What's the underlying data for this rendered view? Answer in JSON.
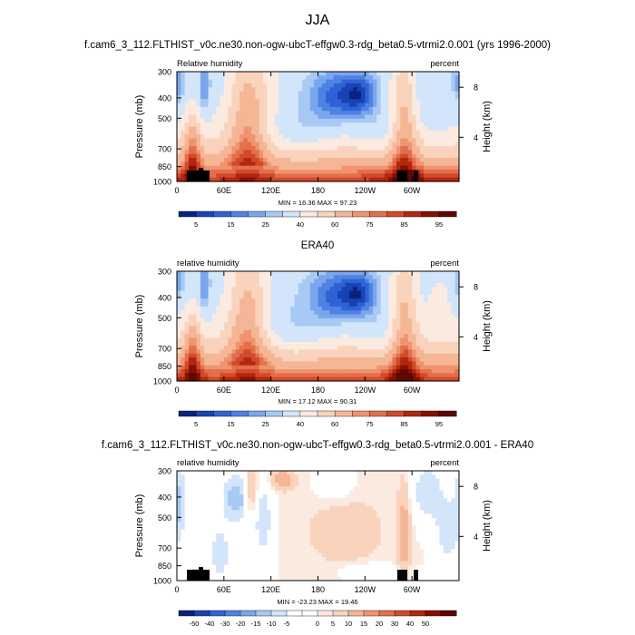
{
  "page": {
    "title": "JJA",
    "panel1_header": "f.cam6_3_112.FLTHIST_v0c.ne30.non-ogw-ubcT-effgw0.3-rdg_beta0.5-vtrmi2.0.001 (yrs 1996-2000)",
    "panel2_header": "ERA40",
    "panel3_header": "f.cam6_3_112.FLTHIST_v0c.ne30.non-ogw-ubcT-effgw0.3-rdg_beta0.5-vtrmi2.0.001 - ERA40"
  },
  "colors": {
    "rh_levels": [
      "#08237e",
      "#1743b4",
      "#2f62d5",
      "#4f82e3",
      "#7aa6ed",
      "#a7c9f4",
      "#d2e5fa",
      "#fbeae0",
      "#f9d3bc",
      "#f5b696",
      "#ef946f",
      "#e36f4c",
      "#d04a2b",
      "#b3260f",
      "#861000",
      "#5d0800"
    ],
    "diff_levels": [
      "#08237e",
      "#1743b4",
      "#2f62d5",
      "#4f82e3",
      "#7aa6ed",
      "#a7c9f4",
      "#d2e5fa",
      "#ffffff",
      "#ffffff",
      "#fbeae0",
      "#f9d3bc",
      "#f5b696",
      "#ef946f",
      "#e36f4c",
      "#d04a2b",
      "#b3260f",
      "#861000",
      "#5d0800"
    ],
    "topography": "#000000"
  },
  "chart_data": [
    {
      "type": "heatmap",
      "title": "f.cam6_3_112.FLTHIST_v0c.ne30.non-ogw-ubcT-effgw0.3-rdg_beta0.5-vtrmi2.0.001 (yrs 1996-2000)",
      "left_label": "Relative humidity",
      "right_label": "percent",
      "xlabel": "",
      "ylabel": "Pressure (mb)",
      "y2label": "Height (km)",
      "xticks": [
        "0",
        "60E",
        "120E",
        "180",
        "120W",
        "60W"
      ],
      "yticks": [
        "300",
        "400",
        "500",
        "700",
        "850",
        "1000"
      ],
      "y2ticks": [
        "8",
        "4"
      ],
      "ylim": [
        300,
        1000
      ],
      "xlim_deg_east": [
        0,
        360
      ],
      "stats": "MIN = 16.36  MAX = 97.23",
      "colorbar_labels": [
        "5",
        "15",
        "25",
        "40",
        "60",
        "75",
        "85",
        "95"
      ],
      "topography": true
    },
    {
      "type": "heatmap",
      "title": "ERA40",
      "left_label": "relative humidity",
      "right_label": "percent",
      "xlabel": "",
      "ylabel": "Pressure (mb)",
      "y2label": "Height (km)",
      "xticks": [
        "0",
        "60E",
        "120E",
        "180",
        "120W",
        "60W"
      ],
      "yticks": [
        "300",
        "400",
        "500",
        "700",
        "850",
        "1000"
      ],
      "y2ticks": [
        "8",
        "4"
      ],
      "ylim": [
        300,
        1000
      ],
      "xlim_deg_east": [
        0,
        360
      ],
      "stats": "MIN = 17.12  MAX = 90.31",
      "colorbar_labels": [
        "5",
        "15",
        "25",
        "40",
        "60",
        "75",
        "85",
        "95"
      ],
      "topography": false
    },
    {
      "type": "heatmap",
      "title": "f.cam6_3_112.FLTHIST_v0c.ne30.non-ogw-ubcT-effgw0.3-rdg_beta0.5-vtrmi2.0.001 - ERA40",
      "left_label": "relative humidity",
      "right_label": "percent",
      "xlabel": "",
      "ylabel": "Pressure (mb)",
      "y2label": "Height (km)",
      "xticks": [
        "0",
        "60E",
        "120E",
        "180",
        "120W",
        "60W"
      ],
      "yticks": [
        "300",
        "400",
        "500",
        "700",
        "850",
        "1000"
      ],
      "y2ticks": [
        "8",
        "4"
      ],
      "ylim": [
        300,
        1000
      ],
      "xlim_deg_east": [
        0,
        360
      ],
      "stats": "MIN = -23.23  MAX = 19.46",
      "colorbar_labels": [
        "-50",
        "-40",
        "-30",
        "-20",
        "-15",
        "-10",
        "-5",
        "0",
        "5",
        "10",
        "15",
        "20",
        "30",
        "40",
        "50"
      ],
      "topography": true
    }
  ]
}
